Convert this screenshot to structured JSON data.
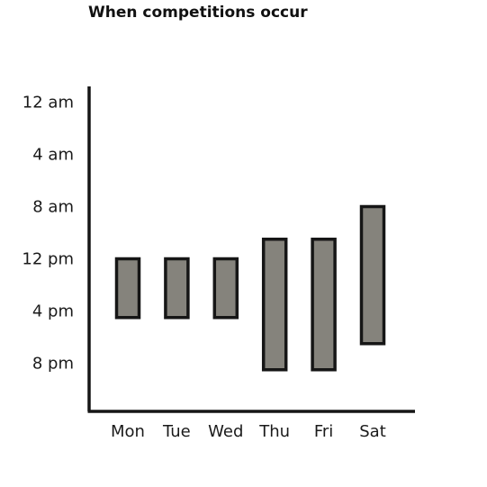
{
  "colors": {
    "bar_fill": "#85837c",
    "bar_stroke": "#161616",
    "axis": "#161616",
    "text": "#1a1a1a"
  },
  "chart_data": {
    "type": "bar",
    "subtype": "floating-range",
    "title": "When competitions occur",
    "xlabel": "",
    "ylabel": "",
    "categories": [
      "Mon",
      "Tue",
      "Wed",
      "Thu",
      "Fri",
      "Sat"
    ],
    "y_axis": {
      "unit": "hour of day",
      "direction": "downward",
      "ticks": [
        0,
        4,
        8,
        12,
        16,
        20
      ],
      "tick_labels": [
        "12 am",
        "4 am",
        "8 am",
        "12 pm",
        "4 pm",
        "8 pm"
      ],
      "range": [
        -1,
        24
      ]
    },
    "series": [
      {
        "start": [
          12,
          12,
          12,
          10.5,
          10.5,
          8
        ],
        "end": [
          16.5,
          16.5,
          16.5,
          20.5,
          20.5,
          18.5
        ]
      }
    ],
    "grid": false,
    "legend": "none"
  }
}
